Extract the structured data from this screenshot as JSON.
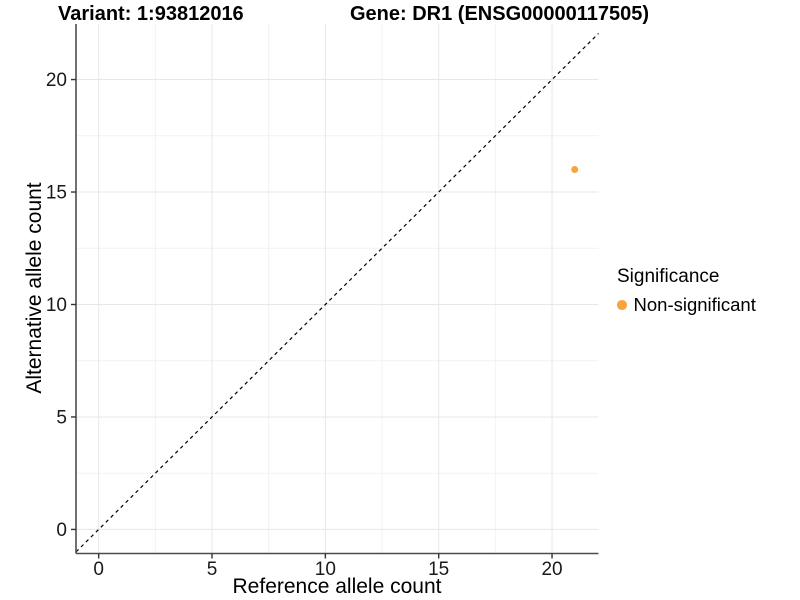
{
  "titles": {
    "variant": "Variant: 1:93812016",
    "gene": "Gene: DR1 (ENSG00000117505)"
  },
  "legend": {
    "title": "Significance",
    "items": [
      {
        "label": "Non-significant",
        "color": "#FAA43C"
      }
    ]
  },
  "chart_data": {
    "type": "scatter",
    "title": "Variant: 1:93812016 — Gene: DR1 (ENSG00000117505)",
    "xlabel": "Reference allele count",
    "ylabel": "Alternative allele count",
    "xlim": [
      -1.0,
      22.05
    ],
    "ylim": [
      -1.07,
      22.47
    ],
    "x_ticks": [
      0,
      5,
      10,
      15,
      20
    ],
    "y_ticks": [
      0,
      5,
      10,
      15,
      20
    ],
    "x_minor_ticks": [
      2.5,
      7.5,
      12.5,
      17.5
    ],
    "y_minor_ticks": [
      2.5,
      7.5,
      12.5,
      17.5
    ],
    "grid": true,
    "legend_position": "right",
    "series": [
      {
        "name": "Non-significant",
        "color": "#FAA43C",
        "point_radius": 3.5,
        "points": [
          {
            "x": 21,
            "y": 16
          }
        ]
      }
    ],
    "reference_line": {
      "type": "identity",
      "line_style": "dashed",
      "color": "#000000"
    }
  },
  "colors": {
    "grid_major": "#E7E7E7",
    "grid_minor": "#F2F2F2",
    "axis_line": "#4D4D4D",
    "tick_mark": "#333333",
    "tick_text": "#1A1A1A"
  }
}
